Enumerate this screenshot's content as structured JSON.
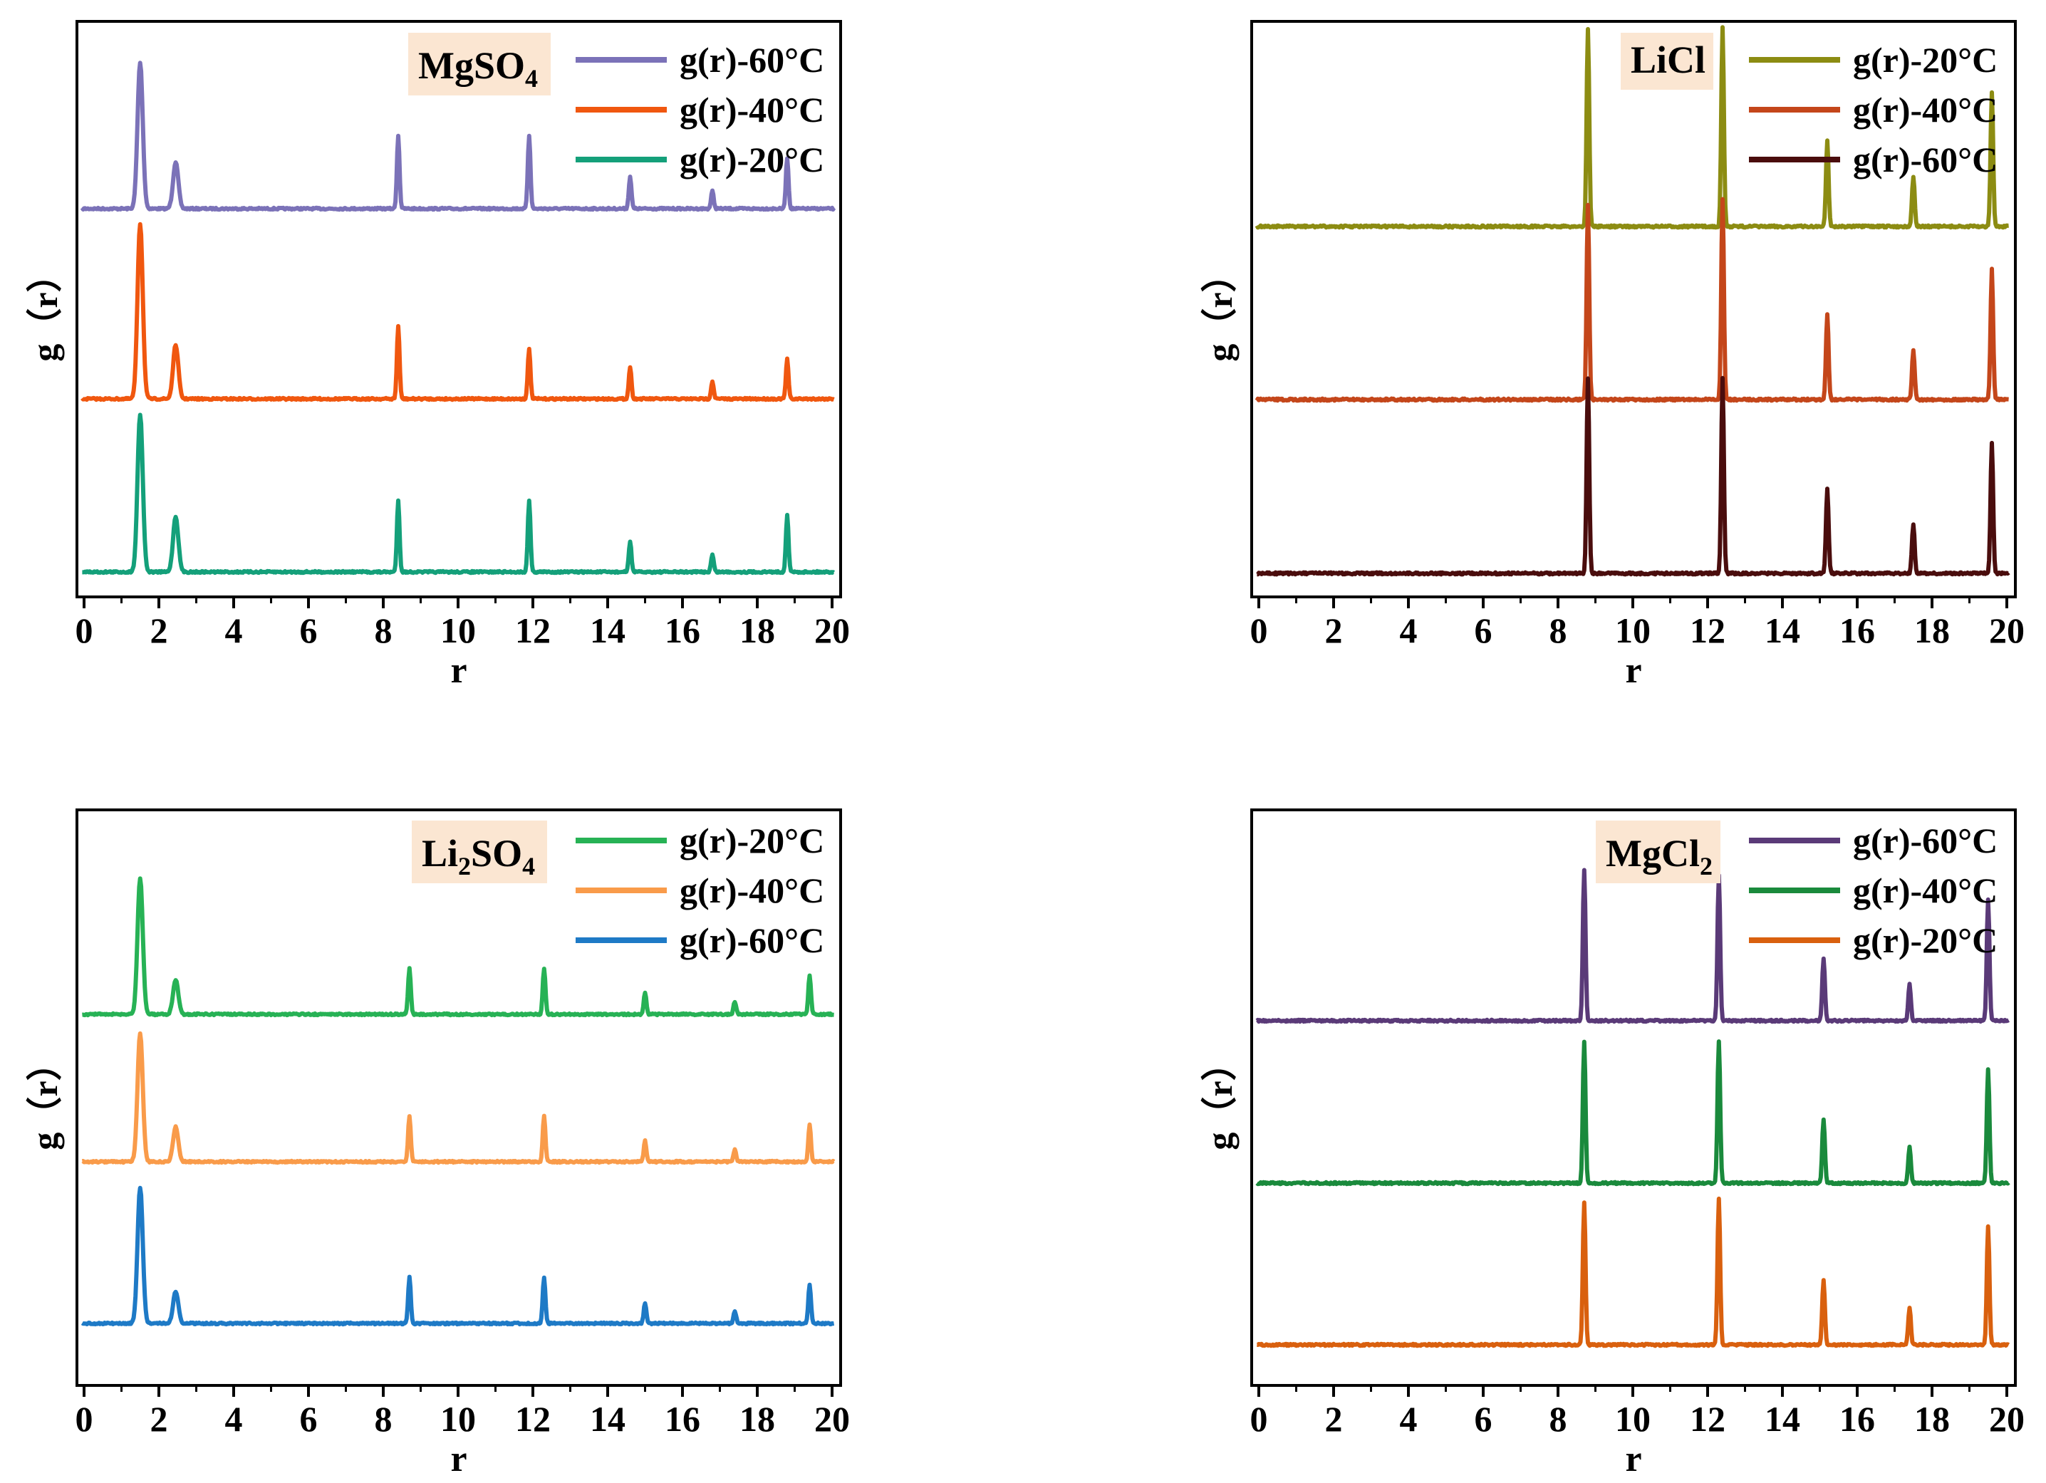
{
  "chart_data": [
    {
      "type": "line",
      "title": "MgSO4",
      "title_main": "MgSO",
      "title_sub": "4",
      "title_tail": "",
      "xlabel": "r",
      "ylabel": "g（r）",
      "xlim": [
        0,
        20
      ],
      "xticks": [
        0,
        2,
        4,
        6,
        8,
        10,
        12,
        14,
        16,
        18,
        20
      ],
      "xtick_labels": [
        "0",
        "2",
        "4",
        "6",
        "8",
        "10",
        "12",
        "14",
        "16",
        "18",
        "20"
      ],
      "grid": false,
      "legend_position": "top-right",
      "series": [
        {
          "name": "g(r)-60°C",
          "color": "#7b72b8",
          "baseline": 2,
          "peaks": [
            {
              "x": 1.5,
              "y": 1.0
            },
            {
              "x": 2.45,
              "y": 0.32
            },
            {
              "x": 8.4,
              "y": 0.5
            },
            {
              "x": 11.9,
              "y": 0.5
            },
            {
              "x": 14.6,
              "y": 0.22
            },
            {
              "x": 16.8,
              "y": 0.12
            },
            {
              "x": 18.8,
              "y": 0.35
            }
          ]
        },
        {
          "name": "g(r)-40°C",
          "color": "#f0570f",
          "baseline": 1,
          "peaks": [
            {
              "x": 1.5,
              "y": 1.2
            },
            {
              "x": 2.45,
              "y": 0.37
            },
            {
              "x": 8.4,
              "y": 0.5
            },
            {
              "x": 11.9,
              "y": 0.34
            },
            {
              "x": 14.6,
              "y": 0.22
            },
            {
              "x": 16.8,
              "y": 0.12
            },
            {
              "x": 18.8,
              "y": 0.27
            }
          ]
        },
        {
          "name": "g(r)-20°C",
          "color": "#14a07a",
          "baseline": 0,
          "peaks": [
            {
              "x": 1.5,
              "y": 1.08
            },
            {
              "x": 2.45,
              "y": 0.38
            },
            {
              "x": 8.4,
              "y": 0.49
            },
            {
              "x": 11.9,
              "y": 0.49
            },
            {
              "x": 14.6,
              "y": 0.21
            },
            {
              "x": 16.8,
              "y": 0.12
            },
            {
              "x": 18.8,
              "y": 0.39
            }
          ]
        }
      ]
    },
    {
      "type": "line",
      "title": "LiCl",
      "title_main": "LiCl",
      "title_sub": "",
      "title_tail": "",
      "xlabel": "r",
      "ylabel": "g（r）",
      "xlim": [
        0,
        20
      ],
      "xticks": [
        0,
        2,
        4,
        6,
        8,
        10,
        12,
        14,
        16,
        18,
        20
      ],
      "xtick_labels": [
        "0",
        "2",
        "4",
        "6",
        "8",
        "10",
        "12",
        "14",
        "16",
        "18",
        "20"
      ],
      "grid": false,
      "legend_position": "top-right",
      "series": [
        {
          "name": "g(r)-20°C",
          "color": "#8c8c12",
          "baseline": 2,
          "peaks": [
            {
              "x": 8.8,
              "y": 1.16
            },
            {
              "x": 12.4,
              "y": 1.16
            },
            {
              "x": 15.2,
              "y": 0.5
            },
            {
              "x": 17.5,
              "y": 0.29
            },
            {
              "x": 19.6,
              "y": 0.78
            }
          ]
        },
        {
          "name": "g(r)-40°C",
          "color": "#c4461a",
          "baseline": 1,
          "peaks": [
            {
              "x": 8.8,
              "y": 1.14
            },
            {
              "x": 12.4,
              "y": 1.17
            },
            {
              "x": 15.2,
              "y": 0.5
            },
            {
              "x": 17.5,
              "y": 0.29
            },
            {
              "x": 19.6,
              "y": 0.76
            }
          ]
        },
        {
          "name": "g(r)-60°C",
          "color": "#4a0d0d",
          "baseline": 0,
          "peaks": [
            {
              "x": 8.8,
              "y": 1.14
            },
            {
              "x": 12.4,
              "y": 1.14
            },
            {
              "x": 15.2,
              "y": 0.5
            },
            {
              "x": 17.5,
              "y": 0.29
            },
            {
              "x": 19.6,
              "y": 0.76
            }
          ]
        }
      ]
    },
    {
      "type": "line",
      "title": "Li2SO4",
      "title_main": "Li",
      "title_sub": "2",
      "title_tail": "SO4",
      "xlabel": "r",
      "ylabel": "g（r）",
      "xlim": [
        0,
        20
      ],
      "xticks": [
        0,
        2,
        4,
        6,
        8,
        10,
        12,
        14,
        16,
        18,
        20
      ],
      "xtick_labels": [
        "0",
        "2",
        "4",
        "6",
        "8",
        "10",
        "12",
        "14",
        "16",
        "18",
        "20"
      ],
      "grid": false,
      "legend_position": "top-right",
      "series": [
        {
          "name": "g(r)-20°C",
          "color": "#27b255",
          "baseline": 2,
          "peaks": [
            {
              "x": 1.5,
              "y": 0.98
            },
            {
              "x": 2.45,
              "y": 0.25
            },
            {
              "x": 8.7,
              "y": 0.33
            },
            {
              "x": 12.3,
              "y": 0.33
            },
            {
              "x": 15.0,
              "y": 0.16
            },
            {
              "x": 17.4,
              "y": 0.09
            },
            {
              "x": 19.4,
              "y": 0.28
            }
          ]
        },
        {
          "name": "g(r)-40°C",
          "color": "#f99b4a",
          "baseline": 1,
          "peaks": [
            {
              "x": 1.5,
              "y": 0.92
            },
            {
              "x": 2.45,
              "y": 0.25
            },
            {
              "x": 8.7,
              "y": 0.33
            },
            {
              "x": 12.3,
              "y": 0.33
            },
            {
              "x": 15.0,
              "y": 0.15
            },
            {
              "x": 17.4,
              "y": 0.09
            },
            {
              "x": 19.4,
              "y": 0.27
            }
          ]
        },
        {
          "name": "g(r)-60°C",
          "color": "#1e7ac6",
          "baseline": 0,
          "peaks": [
            {
              "x": 1.5,
              "y": 0.98
            },
            {
              "x": 2.45,
              "y": 0.23
            },
            {
              "x": 8.7,
              "y": 0.33
            },
            {
              "x": 12.3,
              "y": 0.33
            },
            {
              "x": 15.0,
              "y": 0.15
            },
            {
              "x": 17.4,
              "y": 0.09
            },
            {
              "x": 19.4,
              "y": 0.28
            }
          ]
        }
      ]
    },
    {
      "type": "line",
      "title": "MgCl2",
      "title_main": "MgCl",
      "title_sub": "2",
      "title_tail": "",
      "xlabel": "r",
      "ylabel": "g（r）",
      "xlim": [
        0,
        20
      ],
      "xticks": [
        0,
        2,
        4,
        6,
        8,
        10,
        12,
        14,
        16,
        18,
        20
      ],
      "xtick_labels": [
        "0",
        "2",
        "4",
        "6",
        "8",
        "10",
        "12",
        "14",
        "16",
        "18",
        "20"
      ],
      "grid": false,
      "legend_position": "top-right",
      "series": [
        {
          "name": "g(r)-60°C",
          "color": "#5a3a78",
          "baseline": 2,
          "peaks": [
            {
              "x": 8.7,
              "y": 0.96
            },
            {
              "x": 12.3,
              "y": 0.93
            },
            {
              "x": 15.1,
              "y": 0.4
            },
            {
              "x": 17.4,
              "y": 0.23
            },
            {
              "x": 19.5,
              "y": 0.77
            }
          ]
        },
        {
          "name": "g(r)-40°C",
          "color": "#1a8a3c",
          "baseline": 1,
          "peaks": [
            {
              "x": 8.7,
              "y": 0.9
            },
            {
              "x": 12.3,
              "y": 0.91
            },
            {
              "x": 15.1,
              "y": 0.41
            },
            {
              "x": 17.4,
              "y": 0.23
            },
            {
              "x": 19.5,
              "y": 0.73
            }
          ]
        },
        {
          "name": "g(r)-20°C",
          "color": "#d9600e",
          "baseline": 0,
          "peaks": [
            {
              "x": 8.7,
              "y": 0.91
            },
            {
              "x": 12.3,
              "y": 0.93
            },
            {
              "x": 15.1,
              "y": 0.41
            },
            {
              "x": 17.4,
              "y": 0.24
            },
            {
              "x": 19.5,
              "y": 0.75
            }
          ]
        }
      ]
    }
  ]
}
